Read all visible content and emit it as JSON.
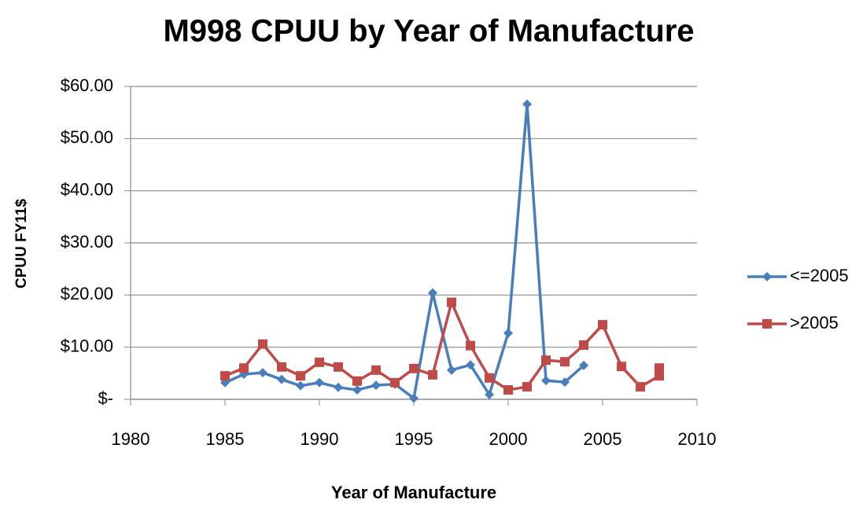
{
  "chart_data": {
    "type": "line",
    "title": "M998 CPUU by Year of Manufacture",
    "xlabel": "Year of Manufacture",
    "ylabel": "CPUU FY11$",
    "xlim": [
      1980,
      2010
    ],
    "xticks": [
      1980,
      1985,
      1990,
      1995,
      2000,
      2005,
      2010
    ],
    "ylim": [
      0,
      60
    ],
    "yticks": [
      {
        "value": 0,
        "label": "$-"
      },
      {
        "value": 10,
        "label": "$10.00"
      },
      {
        "value": 20,
        "label": "$20.00"
      },
      {
        "value": 30,
        "label": "$30.00"
      },
      {
        "value": 40,
        "label": "$40.00"
      },
      {
        "value": 50,
        "label": "$50.00"
      },
      {
        "value": 60,
        "label": "$60.00"
      }
    ],
    "grid": true,
    "legend": "right",
    "series": [
      {
        "name": "<=2005",
        "color": "#4a7ebb",
        "marker": "diamond",
        "x": [
          1985,
          1986,
          1987,
          1988,
          1989,
          1990,
          1991,
          1992,
          1993,
          1994,
          1995,
          1996,
          1997,
          1998,
          1999,
          2000,
          2001,
          2002,
          2003,
          2004
        ],
        "values": [
          3.2,
          4.8,
          5.1,
          3.8,
          2.6,
          3.2,
          2.3,
          1.8,
          2.7,
          2.9,
          0.2,
          20.4,
          5.6,
          6.6,
          0.9,
          12.7,
          56.6,
          3.6,
          3.3,
          6.5
        ]
      },
      {
        "name": ">2005",
        "color": "#be4b48",
        "marker": "square",
        "x": [
          1985,
          1986,
          1987,
          1988,
          1989,
          1990,
          1991,
          1992,
          1993,
          1994,
          1995,
          1996,
          1997,
          1998,
          1999,
          2000,
          2001,
          2002,
          2003,
          2004,
          2005,
          2006,
          2007,
          2008,
          2008
        ],
        "values": [
          4.5,
          6.0,
          10.6,
          6.2,
          4.5,
          7.1,
          6.2,
          3.5,
          5.6,
          3.2,
          5.9,
          4.7,
          18.6,
          10.3,
          4.1,
          1.8,
          2.4,
          7.5,
          7.2,
          10.4,
          14.3,
          6.3,
          2.4,
          4.5,
          6.0
        ]
      }
    ]
  }
}
